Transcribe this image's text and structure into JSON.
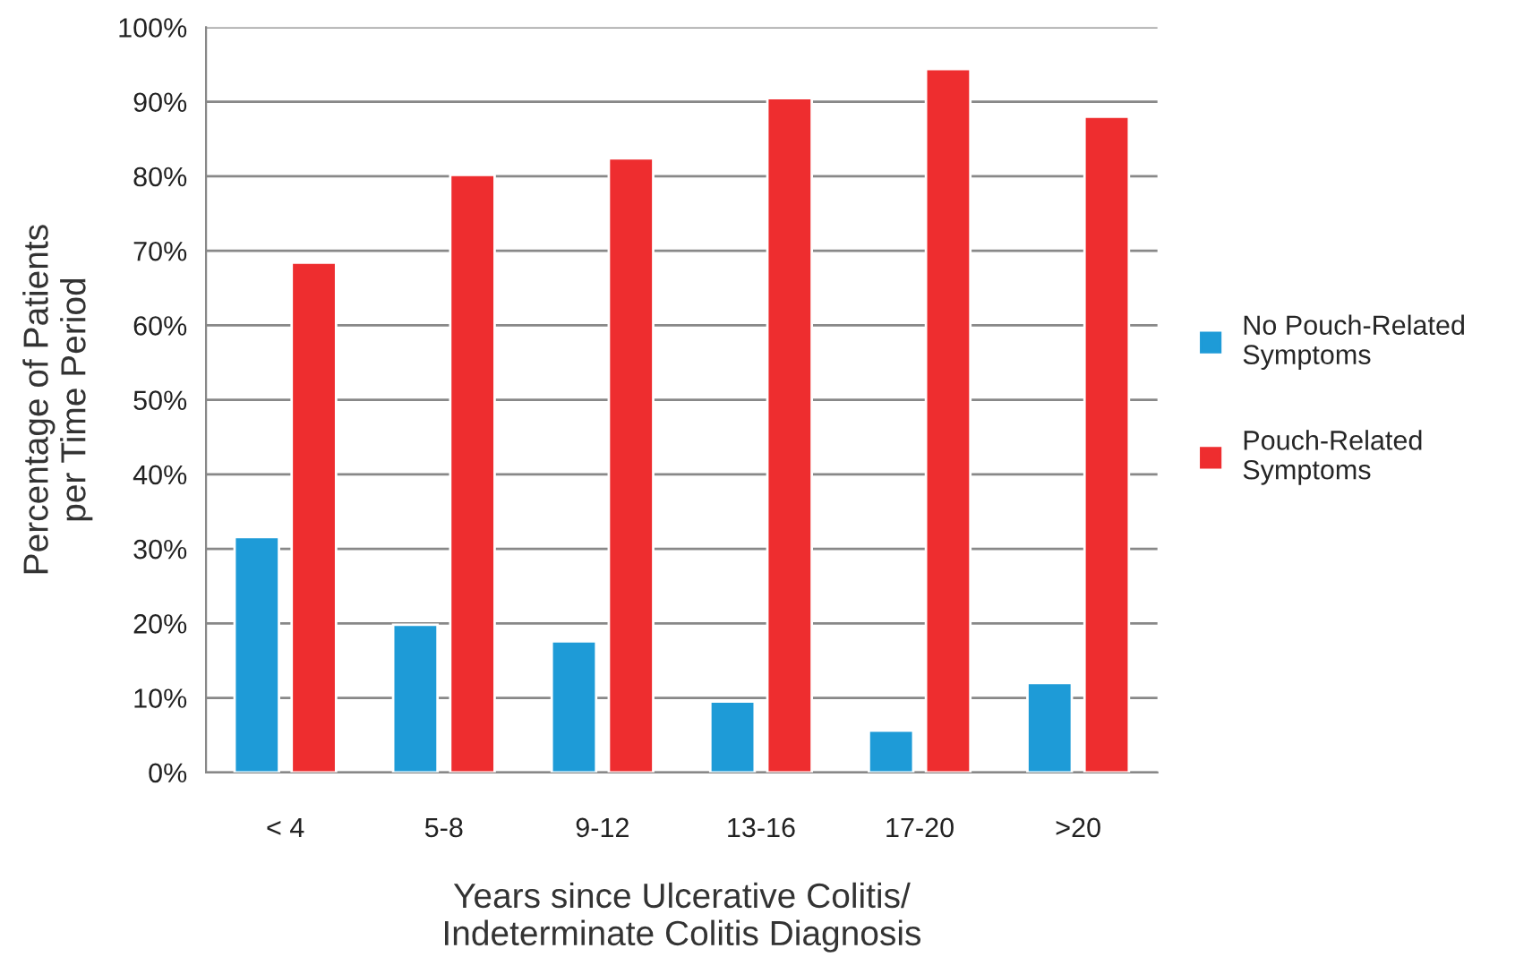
{
  "chart_data": {
    "type": "bar",
    "categories": [
      "< 4",
      "5-8",
      "9-12",
      "13-16",
      "17-20",
      ">20"
    ],
    "series": [
      {
        "name": "No Pouch-Related\nSymptoms",
        "color": "#1e9bd7",
        "values": [
          31.6,
          19.8,
          17.6,
          9.5,
          5.6,
          12.0
        ]
      },
      {
        "name": "Pouch-Related\nSymptoms",
        "color": "#ee2d2f",
        "values": [
          68.4,
          80.2,
          82.4,
          90.5,
          94.4,
          88.0
        ]
      }
    ],
    "xlabel": "Years since Ulcerative Colitis/\nIndeterminate Colitis Diagnosis",
    "ylabel": "Percentage of Patients\nper Time Period",
    "ylim": [
      0,
      100
    ],
    "yticks": [
      {
        "value": 0,
        "label": "0%"
      },
      {
        "value": 10,
        "label": "10%"
      },
      {
        "value": 20,
        "label": "20%"
      },
      {
        "value": 30,
        "label": "30%"
      },
      {
        "value": 40,
        "label": "40%"
      },
      {
        "value": 50,
        "label": "50%"
      },
      {
        "value": 60,
        "label": "60%"
      },
      {
        "value": 70,
        "label": "70%"
      },
      {
        "value": 80,
        "label": "80%"
      },
      {
        "value": 90,
        "label": "90%"
      },
      {
        "value": 100,
        "label": "100%"
      }
    ],
    "grid": "y",
    "legend": "right"
  }
}
